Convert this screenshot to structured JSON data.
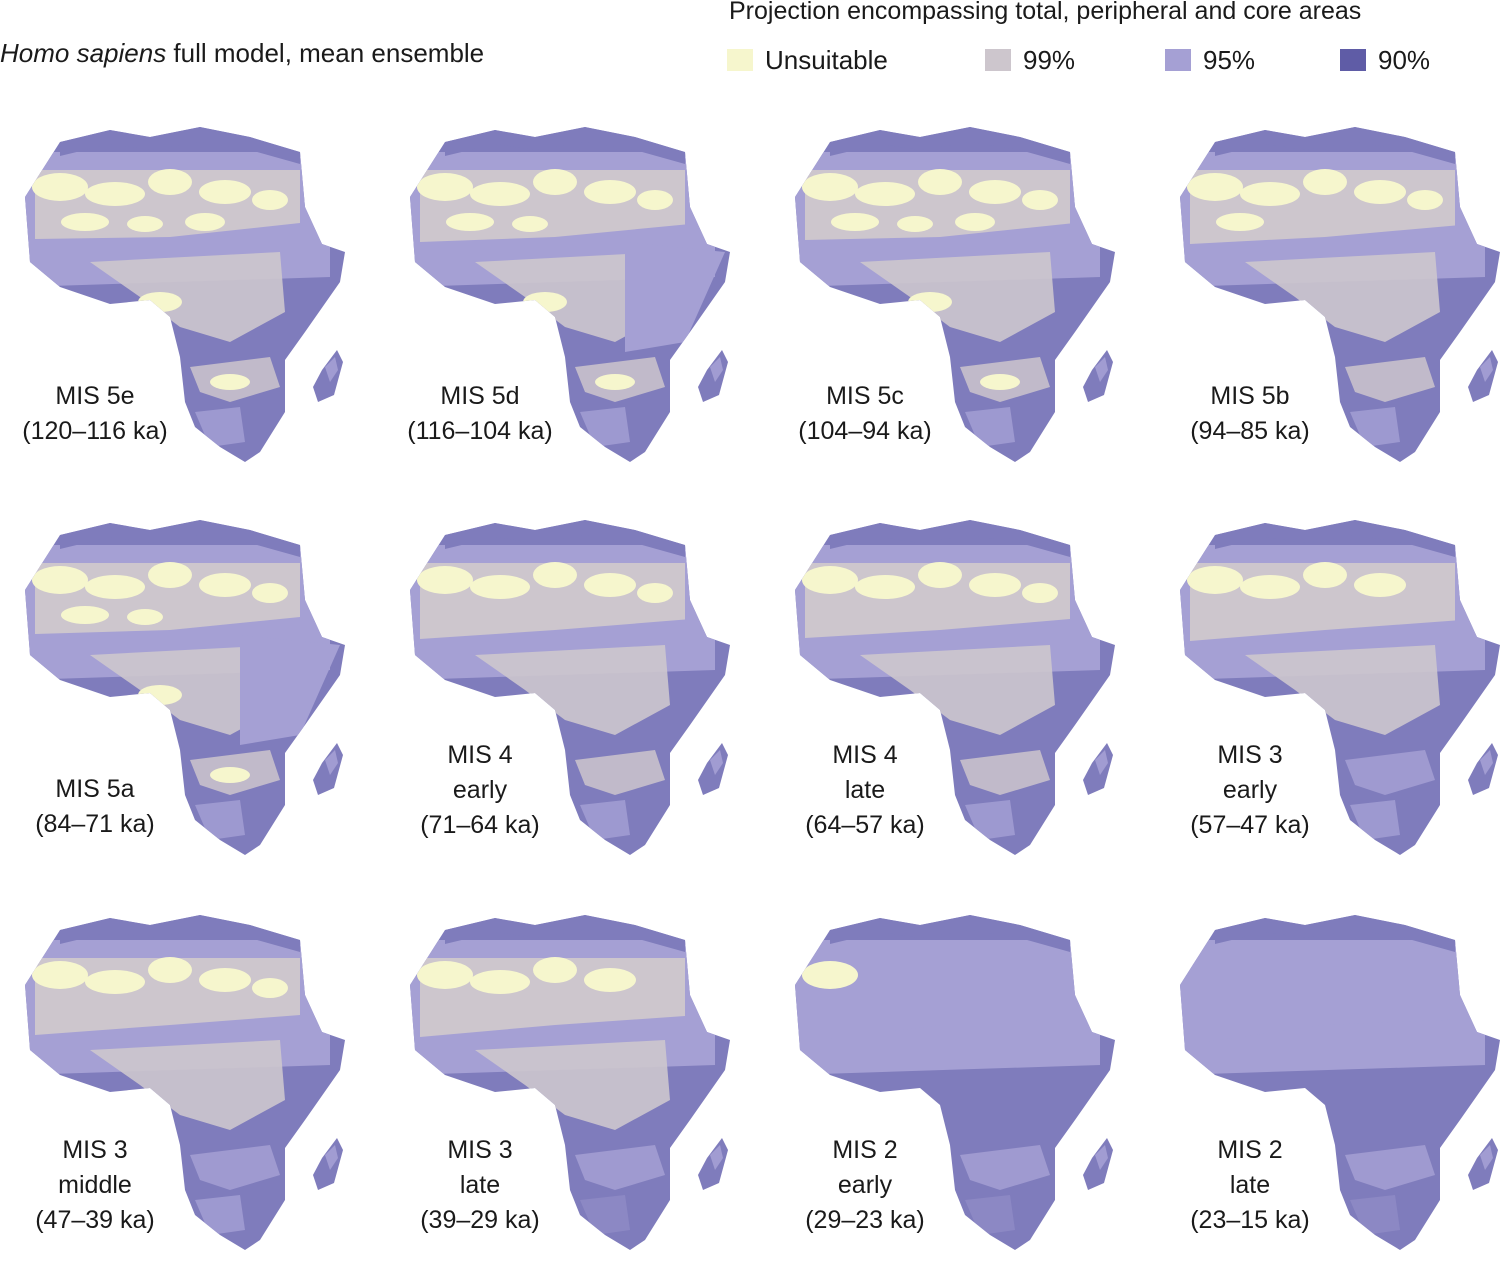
{
  "header": {
    "subtitle_italic": "Homo sapiens",
    "subtitle_rest": " full model, mean ensemble"
  },
  "legend": {
    "title": "Projection encompassing total, peripheral and core areas",
    "items": [
      {
        "label": "Unsuitable",
        "color": "#f6f6cd"
      },
      {
        "label": "99%",
        "color": "#cdc6cd"
      },
      {
        "label": "95%",
        "color": "#a5a0d4"
      },
      {
        "label": "90%",
        "color": "#7f7cbc"
      }
    ]
  },
  "colors": {
    "unsuitable": "#f6f6cd",
    "p99": "#cdc6cd",
    "p95": "#a5a0d4",
    "p90": "#7f7cbc"
  },
  "panels": [
    {
      "lines": [
        "MIS 5e",
        "(120–116 ka)"
      ]
    },
    {
      "lines": [
        "MIS 5d",
        "(116–104 ka)"
      ]
    },
    {
      "lines": [
        "MIS 5c",
        "(104–94 ka)"
      ]
    },
    {
      "lines": [
        "MIS 5b",
        "(94–85 ka)"
      ]
    },
    {
      "lines": [
        "MIS 5a",
        "(84–71 ka)"
      ]
    },
    {
      "lines": [
        "MIS 4",
        "early",
        "(71–64 ka)"
      ]
    },
    {
      "lines": [
        "MIS 4",
        "late",
        "(64–57 ka)"
      ]
    },
    {
      "lines": [
        "MIS 3",
        "early",
        "(57–47 ka)"
      ]
    },
    {
      "lines": [
        "MIS 3",
        "middle",
        "(47–39 ka)"
      ]
    },
    {
      "lines": [
        "MIS 3",
        "late",
        "(39–29 ka)"
      ]
    },
    {
      "lines": [
        "MIS 2",
        "early",
        "(29–23 ka)"
      ]
    },
    {
      "lines": [
        "MIS 2",
        "late",
        "(23–15 ka)"
      ]
    }
  ]
}
